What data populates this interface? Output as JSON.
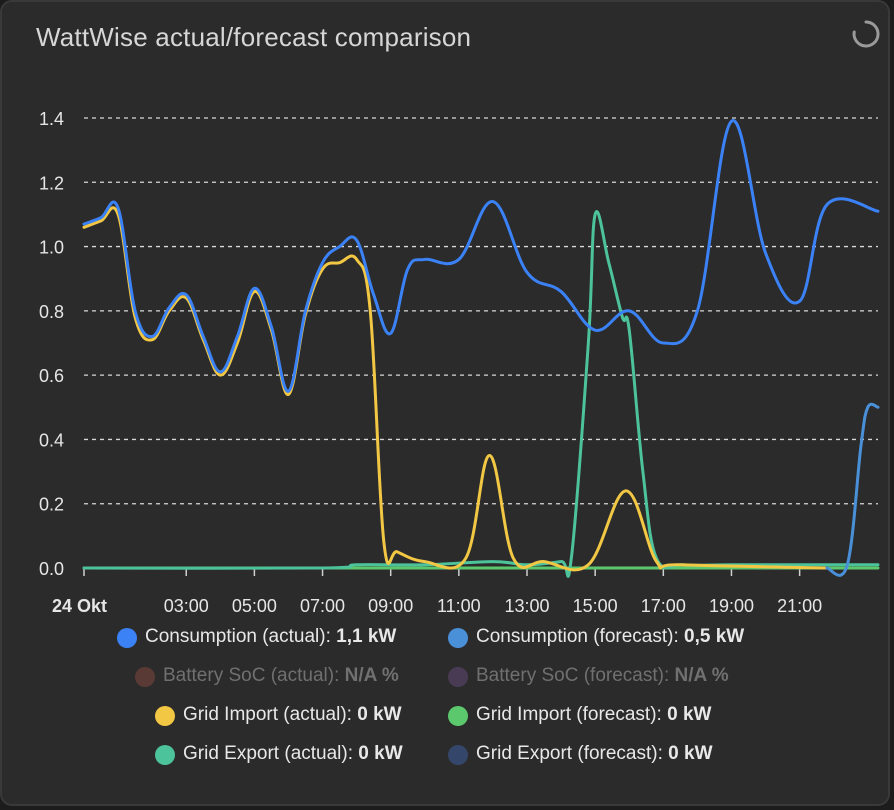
{
  "card": {
    "title": "WattWise actual/forecast comparison"
  },
  "chart_data": {
    "type": "line",
    "x_ticks": [
      "24 Okt",
      "03:00",
      "05:00",
      "07:00",
      "09:00",
      "11:00",
      "13:00",
      "15:00",
      "17:00",
      "19:00",
      "21:00"
    ],
    "y_ticks": [
      "0.0",
      "0.2",
      "0.4",
      "0.6",
      "0.8",
      "1.0",
      "1.2",
      "1.4"
    ],
    "ylim": [
      0,
      1.4
    ],
    "xlim_hours": [
      0,
      23.3
    ],
    "series": [
      {
        "name": "Consumption (actual)",
        "color": "#3b82f6",
        "points": [
          [
            0,
            1.07
          ],
          [
            0.5,
            1.09
          ],
          [
            1,
            1.12
          ],
          [
            1.5,
            0.8
          ],
          [
            2,
            0.72
          ],
          [
            2.5,
            0.81
          ],
          [
            3,
            0.85
          ],
          [
            3.5,
            0.72
          ],
          [
            4,
            0.61
          ],
          [
            4.5,
            0.72
          ],
          [
            5,
            0.87
          ],
          [
            5.5,
            0.75
          ],
          [
            6,
            0.55
          ],
          [
            6.5,
            0.8
          ],
          [
            7,
            0.95
          ],
          [
            7.5,
            1.0
          ],
          [
            8,
            1.02
          ],
          [
            8.5,
            0.85
          ],
          [
            9,
            0.73
          ],
          [
            9.5,
            0.93
          ],
          [
            10,
            0.96
          ],
          [
            11,
            0.96
          ],
          [
            12,
            1.14
          ],
          [
            13,
            0.92
          ],
          [
            14,
            0.86
          ],
          [
            15,
            0.74
          ],
          [
            16,
            0.8
          ],
          [
            17,
            0.7
          ],
          [
            18,
            0.8
          ],
          [
            19,
            1.39
          ],
          [
            20,
            0.98
          ],
          [
            21,
            0.83
          ],
          [
            21.8,
            1.13
          ],
          [
            23.3,
            1.11
          ]
        ]
      },
      {
        "name": "Consumption (forecast)",
        "color": "#4a90d9",
        "points": [
          [
            21.8,
            0
          ],
          [
            22.4,
            0.01
          ],
          [
            22.8,
            0.38
          ],
          [
            23.0,
            0.5
          ],
          [
            23.3,
            0.5
          ]
        ]
      },
      {
        "name": "Grid Import (actual)",
        "color": "#f2c744",
        "points": [
          [
            0,
            1.06
          ],
          [
            0.5,
            1.08
          ],
          [
            1,
            1.1
          ],
          [
            1.5,
            0.78
          ],
          [
            2,
            0.71
          ],
          [
            2.5,
            0.8
          ],
          [
            3,
            0.84
          ],
          [
            3.5,
            0.71
          ],
          [
            4,
            0.6
          ],
          [
            4.5,
            0.7
          ],
          [
            5,
            0.86
          ],
          [
            5.5,
            0.74
          ],
          [
            6,
            0.54
          ],
          [
            6.5,
            0.79
          ],
          [
            7,
            0.93
          ],
          [
            7.5,
            0.95
          ],
          [
            8,
            0.96
          ],
          [
            8.4,
            0.8
          ],
          [
            8.8,
            0.08
          ],
          [
            9.2,
            0.05
          ],
          [
            10,
            0.02
          ],
          [
            11.2,
            0.03
          ],
          [
            11.9,
            0.35
          ],
          [
            12.6,
            0.03
          ],
          [
            13.5,
            0.02
          ],
          [
            14.8,
            0.01
          ],
          [
            15.9,
            0.24
          ],
          [
            16.8,
            0.02
          ],
          [
            17.5,
            0.01
          ],
          [
            21.8,
            0.0
          ]
        ]
      },
      {
        "name": "Grid Import (forecast)",
        "color": "#5cc86e",
        "points": [
          [
            0,
            0.0
          ],
          [
            23.3,
            0.0
          ]
        ]
      },
      {
        "name": "Grid Export (actual)",
        "color": "#4cc39a",
        "points": [
          [
            0,
            0.0
          ],
          [
            7,
            0.0
          ],
          [
            8,
            0.01
          ],
          [
            10,
            0.01
          ],
          [
            12,
            0.02
          ],
          [
            13,
            0.01
          ],
          [
            14,
            0.02
          ],
          [
            14.3,
            0.03
          ],
          [
            14.8,
            0.7
          ],
          [
            15.0,
            1.1
          ],
          [
            15.4,
            0.95
          ],
          [
            15.8,
            0.78
          ],
          [
            16.0,
            0.74
          ],
          [
            16.4,
            0.3
          ],
          [
            16.8,
            0.03
          ],
          [
            17.6,
            0.01
          ],
          [
            19,
            0.01
          ],
          [
            21.8,
            0.01
          ],
          [
            23.3,
            0.01
          ]
        ]
      }
    ]
  },
  "legend": {
    "rows": [
      [
        {
          "label": "Consumption (actual):",
          "value": "1,1 kW",
          "color": "#3b82f6",
          "on": true
        },
        {
          "label": "Consumption (forecast):",
          "value": "0,5 kW",
          "color": "#4a90d9",
          "on": true
        }
      ],
      [
        {
          "label": "Battery SoC (actual):",
          "value": "N/A %",
          "color": "#5a3a35",
          "on": false
        },
        {
          "label": "Battery SoC (forecast):",
          "value": "N/A %",
          "color": "#4a3b55",
          "on": false
        }
      ],
      [
        {
          "label": "Grid Import (actual):",
          "value": "0 kW",
          "color": "#f2c744",
          "on": true
        },
        {
          "label": "Grid Import (forecast):",
          "value": "0 kW",
          "color": "#5cc86e",
          "on": true
        }
      ],
      [
        {
          "label": "Grid Export (actual):",
          "value": "0 kW",
          "color": "#4cc39a",
          "on": true
        },
        {
          "label": "Grid Export (forecast):",
          "value": "0 kW",
          "color": "#34476a",
          "on": true
        }
      ]
    ]
  }
}
